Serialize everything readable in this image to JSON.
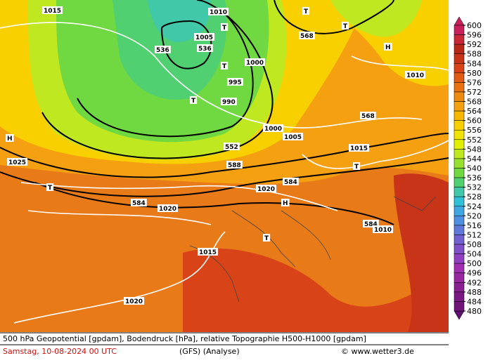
{
  "caption": {
    "line1": "500 hPa Geopotential [gpdam], Bodendruck [hPa], relative Topographie H500-H1000 [gpdam]",
    "date": "Samstag, 10-08-2024  00 UTC",
    "model": "(GFS)  (Analyse)",
    "credit": "© www.wetter3.de"
  },
  "scale": {
    "ticks": [
      600,
      596,
      592,
      588,
      584,
      580,
      576,
      572,
      568,
      564,
      560,
      556,
      552,
      548,
      544,
      540,
      536,
      532,
      528,
      524,
      520,
      516,
      512,
      508,
      504,
      500,
      496,
      492,
      488,
      484,
      480
    ],
    "colors": [
      "#c8205a",
      "#c82838",
      "#b82818",
      "#c83418",
      "#d84418",
      "#e05c14",
      "#e87210",
      "#ef8a10",
      "#f5a010",
      "#f8b800",
      "#f8d000",
      "#f2e400",
      "#e0f000",
      "#c0e820",
      "#98e030",
      "#70d840",
      "#50d070",
      "#40c8a8",
      "#30c0d8",
      "#40a8e0",
      "#5090e0",
      "#6078d8",
      "#7060d0",
      "#8050c8",
      "#9040c0",
      "#a030b0",
      "#9828a0",
      "#882090",
      "#781880",
      "#701478",
      "#601070"
    ]
  },
  "map_labels": [
    "1015",
    "1010",
    "1005",
    "1000",
    "995",
    "990",
    "536",
    "536",
    "568",
    "568",
    "552",
    "588",
    "584",
    "584",
    "584",
    "1020",
    "1020",
    "1020",
    "1015",
    "1015",
    "1010",
    "1010",
    "1025",
    "1000",
    "1005",
    "H",
    "H",
    "H",
    "T",
    "T",
    "T",
    "T",
    "T",
    "T",
    "T",
    "T"
  ]
}
